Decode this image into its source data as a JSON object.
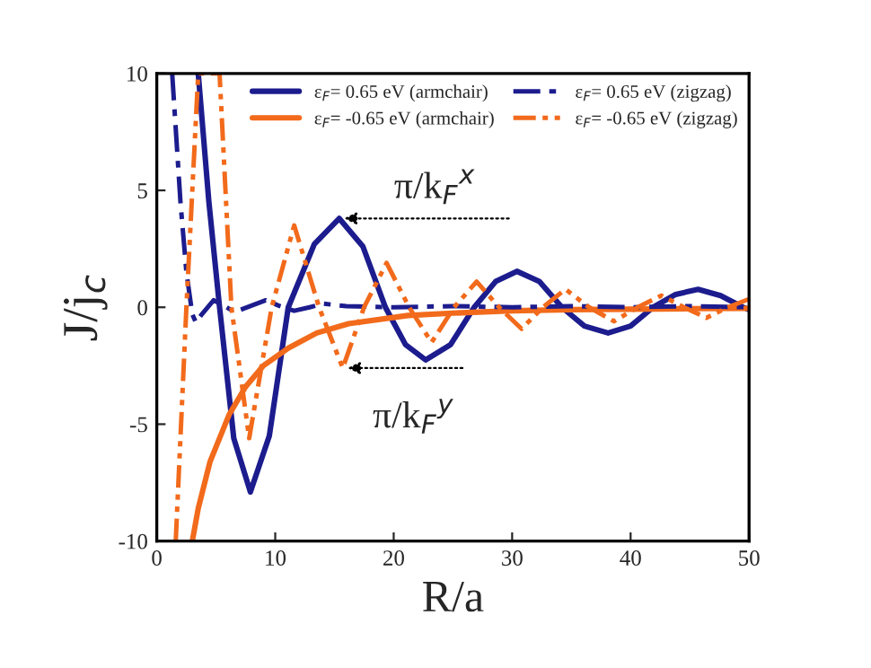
{
  "chart_data": {
    "type": "line",
    "xlabel": "R/a",
    "ylabel": "J/j$_{c}$",
    "xlim": [
      0,
      50
    ],
    "xticks": [
      0,
      10,
      20,
      30,
      40,
      50
    ],
    "ylim": [
      -10,
      10
    ],
    "yticks": [
      -10,
      -5,
      0,
      5,
      10
    ],
    "grid": false,
    "legend": "top right",
    "marker": "none",
    "series": [
      {
        "name": "ε$_{F}$= 0.65 eV (armchair)",
        "color": "#1c1c8e",
        "line_style": "solid",
        "x": [
          3.5,
          4.4,
          5.3,
          6.5,
          7.9,
          9.5,
          11.1,
          13.3,
          15.4,
          17.4,
          19.3,
          21.0,
          22.7,
          24.8,
          26.8,
          28.6,
          30.4,
          32.3,
          34.2,
          36.1,
          38.1,
          40.0,
          41.9,
          43.8,
          45.7,
          47.6,
          49.5,
          50
        ],
        "values": [
          10,
          4.5,
          0,
          -5.6,
          -7.9,
          -5.5,
          0,
          2.7,
          3.8,
          2.6,
          0,
          -1.6,
          -2.25,
          -1.6,
          0,
          1.1,
          1.54,
          1.1,
          0,
          -0.8,
          -1.1,
          -0.8,
          0,
          0.55,
          0.77,
          0.5,
          0,
          -0.1
        ]
      },
      {
        "name": "ε$_{F}$= -0.65 eV (armchair)",
        "color": "#f26a1b",
        "line_style": "solid",
        "x": [
          3.0,
          3.5,
          4.5,
          6.1,
          7.5,
          9,
          11.1,
          13.5,
          16.2,
          21.2,
          25,
          30,
          35,
          40,
          45,
          50
        ],
        "values": [
          -10,
          -8.6,
          -6.6,
          -4.6,
          -3.4,
          -2.5,
          -1.75,
          -1.1,
          -0.7,
          -0.35,
          -0.25,
          -0.15,
          -0.1,
          -0.08,
          -0.06,
          -0.05
        ]
      },
      {
        "name": "ε$_{F}$= 0.65 eV (zigzag)",
        "color": "#1c1c8e",
        "line_style": "dashdot",
        "x": [
          1.3,
          2.0,
          2.5,
          3.0,
          3.3,
          3.8,
          4.8,
          5.7,
          6.6,
          7.9,
          9.2,
          10.4,
          11.6,
          12.9,
          14.1,
          16,
          20,
          25,
          30,
          35,
          40,
          45,
          50
        ],
        "values": [
          10,
          4.5,
          1.5,
          -0.3,
          -0.65,
          -0.3,
          0.3,
          0.05,
          -0.2,
          0.05,
          0.3,
          0.05,
          -0.15,
          0,
          0.15,
          0.05,
          0,
          0.05,
          0,
          0.05,
          0,
          0.05,
          0
        ]
      },
      {
        "name": "ε$_{F}$= -0.65 eV (zigzag)",
        "color": "#f26a1b",
        "line_style": "dashdotdot",
        "x": [
          1.6,
          2.5,
          3.5,
          4.3,
          5.3,
          6.3,
          7.8,
          9.7,
          11.6,
          13.7,
          15.7,
          17.5,
          19.4,
          21.3,
          23.2,
          25.1,
          27.0,
          28.9,
          30.8,
          32.6,
          34.5,
          36.5,
          38.6,
          40.6,
          42.6,
          44.5,
          46.4,
          48.2,
          50
        ],
        "values": [
          -10,
          0,
          10,
          null,
          10,
          0,
          -5.6,
          0,
          3.5,
          0,
          -2.6,
          0,
          1.9,
          0,
          -1.5,
          0,
          1.1,
          0,
          -0.92,
          0,
          0.77,
          0,
          -0.6,
          0,
          0.5,
          0,
          -0.45,
          0,
          0.35
        ]
      }
    ],
    "annotations": [
      {
        "text": "π/k$_{F}$$^{x}$",
        "x": 15.4,
        "y": 3.8
      },
      {
        "text": "π/k$_{F}$$^{y}$",
        "x": 15.7,
        "y": -2.6
      }
    ]
  }
}
